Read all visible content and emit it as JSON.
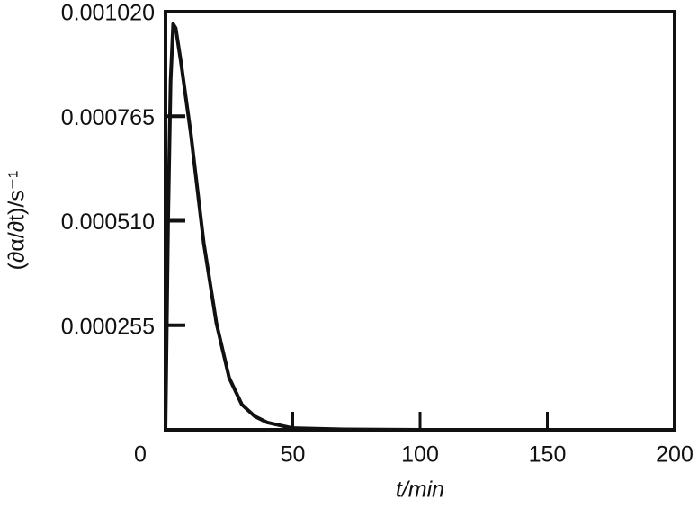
{
  "chart_data": {
    "type": "line",
    "x_label": "t/min",
    "y_label": "(∂α/∂t)/s⁻¹",
    "x": [
      0,
      1,
      2,
      3,
      4,
      6,
      8,
      10,
      15,
      20,
      25,
      30,
      35,
      40,
      50,
      70,
      100,
      150,
      200
    ],
    "series": [
      {
        "color": "#111111",
        "values": [
          0,
          0.0005,
          0.00085,
          0.00099,
          0.00098,
          0.0009,
          0.00081,
          0.00072,
          0.000457,
          0.00026,
          0.000127,
          6.15e-05,
          3.3e-05,
          1.76e-05,
          4e-06,
          1e-06,
          0,
          0,
          0
        ]
      }
    ],
    "xlim": [
      0,
      200
    ],
    "xticks": [
      0,
      50,
      100,
      150,
      200
    ],
    "ylim": [
      0,
      0.00102
    ],
    "yticks": [
      0.000255,
      {
        "value": 0.00051,
        "label": "0.000510"
      },
      0.000765,
      {
        "value": 0.00102,
        "label": "0.001020"
      }
    ]
  }
}
